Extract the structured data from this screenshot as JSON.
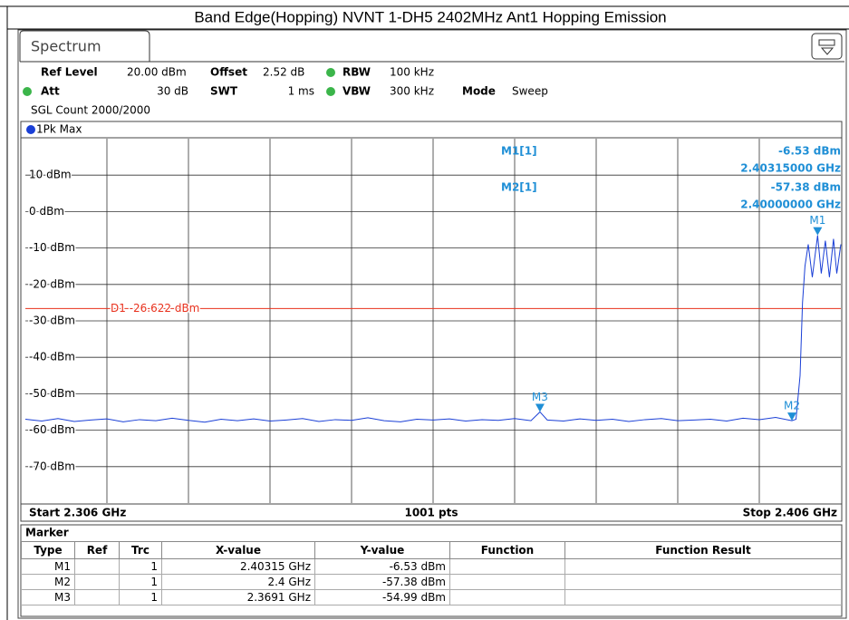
{
  "header": {
    "title": "Band Edge(Hopping) NVNT 1-DH5 2402MHz Ant1 Hopping Emission"
  },
  "tab": "Spectrum",
  "settings": {
    "ref_level_label": "Ref Level",
    "ref_level": "20.00 dBm",
    "offset_label": "Offset",
    "offset": "2.52 dB",
    "rbw_label": "RBW",
    "rbw": "100 kHz",
    "att_label": "Att",
    "att": "30 dB",
    "swt_label": "SWT",
    "swt": "1 ms",
    "vbw_label": "VBW",
    "vbw": "300 kHz",
    "mode_label": "Mode",
    "mode": "Sweep",
    "count": "SGL Count 2000/2000"
  },
  "trace_label": "1Pk Max",
  "readout": [
    {
      "name": "M1[1]",
      "level": "-6.53 dBm",
      "freq": "2.40315000 GHz"
    },
    {
      "name": "M2[1]",
      "level": "-57.38 dBm",
      "freq": "2.40000000 GHz"
    }
  ],
  "footer": {
    "start": "Start 2.306 GHz",
    "points": "1001 pts",
    "stop": "Stop 2.406 GHz"
  },
  "chart_data": {
    "type": "line",
    "xlim": [
      2.306,
      2.406
    ],
    "ylim": [
      -80,
      20
    ],
    "yticks": [
      {
        "value": 10,
        "label": "10 dBm"
      },
      {
        "value": 0,
        "label": "0 dBm"
      },
      {
        "value": -10,
        "label": "-10 dBm"
      },
      {
        "value": -20,
        "label": "-20 dBm"
      },
      {
        "value": -30,
        "label": "-30 dBm"
      },
      {
        "value": -40,
        "label": "-40 dBm"
      },
      {
        "value": -50,
        "label": "-50 dBm"
      },
      {
        "value": -60,
        "label": "-60 dBm"
      },
      {
        "value": -70,
        "label": "-70 dBm"
      }
    ],
    "grid": true,
    "threshold": {
      "value": -26.622,
      "label": "D1 -26.622 dBm",
      "color": "#e8301c"
    },
    "series": [
      {
        "color": "#1a3fd6",
        "x": [
          2.306,
          2.308,
          2.31,
          2.312,
          2.314,
          2.316,
          2.318,
          2.32,
          2.322,
          2.324,
          2.326,
          2.328,
          2.33,
          2.332,
          2.334,
          2.336,
          2.338,
          2.34,
          2.342,
          2.344,
          2.346,
          2.348,
          2.35,
          2.352,
          2.354,
          2.356,
          2.358,
          2.36,
          2.362,
          2.364,
          2.366,
          2.368,
          2.3691,
          2.37,
          2.372,
          2.374,
          2.376,
          2.378,
          2.38,
          2.382,
          2.384,
          2.386,
          2.388,
          2.39,
          2.392,
          2.394,
          2.396,
          2.398,
          2.4,
          2.4005,
          2.401,
          2.4013,
          2.4016,
          2.402,
          2.4025,
          2.40315,
          2.4036,
          2.4041,
          2.4046,
          2.4051,
          2.4055,
          2.406
        ],
        "values": [
          -57,
          -57.5,
          -56.8,
          -57.6,
          -57.2,
          -56.9,
          -57.7,
          -57.1,
          -57.4,
          -56.7,
          -57.3,
          -57.8,
          -57,
          -57.4,
          -56.9,
          -57.5,
          -57.2,
          -56.8,
          -57.6,
          -57.1,
          -57.3,
          -56.6,
          -57.4,
          -57.7,
          -57,
          -57.2,
          -56.9,
          -57.5,
          -57.1,
          -57.3,
          -56.8,
          -57.4,
          -54.99,
          -57.2,
          -57.5,
          -56.9,
          -57.3,
          -57,
          -57.6,
          -57.1,
          -56.8,
          -57.4,
          -57.2,
          -57,
          -57.5,
          -56.7,
          -57.1,
          -56.5,
          -57.38,
          -57,
          -45,
          -25,
          -15,
          -9,
          -18,
          -6.53,
          -17,
          -8,
          -18,
          -7.5,
          -17,
          -9
        ]
      }
    ],
    "markers": [
      {
        "name": "M1",
        "x": 2.40315,
        "y": -6.53
      },
      {
        "name": "M2",
        "x": 2.4,
        "y": -57.38
      },
      {
        "name": "M3",
        "x": 2.3691,
        "y": -54.99
      }
    ]
  },
  "marker_table": {
    "title": "Marker",
    "columns": [
      "Type",
      "Ref",
      "Trc",
      "X-value",
      "Y-value",
      "Function",
      "Function Result"
    ],
    "rows": [
      {
        "type": "M1",
        "trc": "1",
        "x": "2.40315 GHz",
        "y": "-6.53 dBm"
      },
      {
        "type": "M2",
        "trc": "1",
        "x": "2.4 GHz",
        "y": "-57.38 dBm"
      },
      {
        "type": "M3",
        "trc": "1",
        "x": "2.3691 GHz",
        "y": "-54.99 dBm"
      }
    ]
  }
}
